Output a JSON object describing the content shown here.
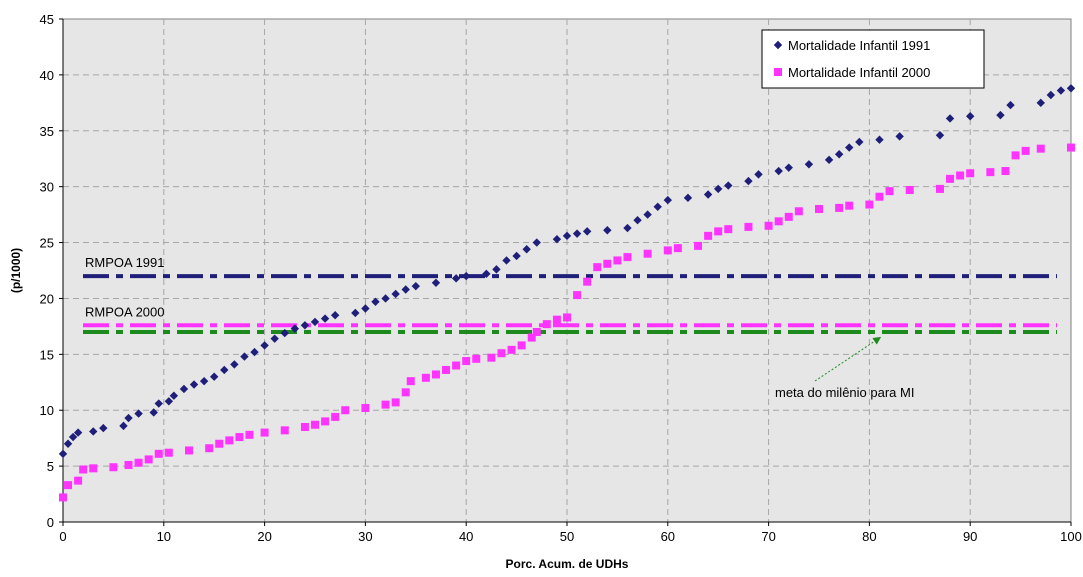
{
  "chart_data": {
    "type": "scatter",
    "xlabel": "Porc. Acum. de UDHs",
    "ylabel": "(p/1000)",
    "xlim": [
      0,
      100
    ],
    "ylim": [
      0,
      45
    ],
    "xticks": [
      0,
      10,
      20,
      30,
      40,
      50,
      60,
      70,
      80,
      90,
      100
    ],
    "yticks": [
      0,
      5,
      10,
      15,
      20,
      25,
      30,
      35,
      40,
      45
    ],
    "grid": true,
    "legend_position": "top-right",
    "plot_background": "#e6e6e6",
    "series": [
      {
        "name": "Mortalidade Infantil 1991",
        "marker": "diamond",
        "color": "#1f1f7a",
        "points": [
          [
            0,
            6.1
          ],
          [
            0.5,
            7.0
          ],
          [
            1,
            7.6
          ],
          [
            1.5,
            8.0
          ],
          [
            3,
            8.1
          ],
          [
            4,
            8.4
          ],
          [
            6,
            8.6
          ],
          [
            6.5,
            9.3
          ],
          [
            7.5,
            9.7
          ],
          [
            9,
            9.8
          ],
          [
            9.5,
            10.6
          ],
          [
            10.5,
            10.8
          ],
          [
            11,
            11.3
          ],
          [
            12,
            11.9
          ],
          [
            13,
            12.3
          ],
          [
            14,
            12.6
          ],
          [
            15,
            13.0
          ],
          [
            16,
            13.6
          ],
          [
            17,
            14.1
          ],
          [
            18,
            14.8
          ],
          [
            19,
            15.2
          ],
          [
            20,
            15.8
          ],
          [
            21,
            16.4
          ],
          [
            22,
            16.9
          ],
          [
            23,
            17.3
          ],
          [
            24,
            17.6
          ],
          [
            25,
            17.9
          ],
          [
            26,
            18.2
          ],
          [
            27,
            18.5
          ],
          [
            29,
            18.7
          ],
          [
            30,
            19.1
          ],
          [
            31,
            19.7
          ],
          [
            32,
            20.0
          ],
          [
            33,
            20.4
          ],
          [
            34,
            20.8
          ],
          [
            35,
            21.1
          ],
          [
            37,
            21.4
          ],
          [
            39,
            21.8
          ],
          [
            40,
            22.0
          ],
          [
            42,
            22.2
          ],
          [
            43,
            22.6
          ],
          [
            44,
            23.4
          ],
          [
            45,
            23.8
          ],
          [
            46,
            24.4
          ],
          [
            47,
            25.0
          ],
          [
            49,
            25.3
          ],
          [
            50,
            25.6
          ],
          [
            51,
            25.8
          ],
          [
            52,
            26.0
          ],
          [
            54,
            26.1
          ],
          [
            56,
            26.3
          ],
          [
            57,
            27.0
          ],
          [
            58,
            27.5
          ],
          [
            59,
            28.2
          ],
          [
            60,
            28.8
          ],
          [
            62,
            29.0
          ],
          [
            64,
            29.3
          ],
          [
            65,
            29.8
          ],
          [
            66,
            30.1
          ],
          [
            68,
            30.5
          ],
          [
            69,
            31.1
          ],
          [
            71,
            31.4
          ],
          [
            72,
            31.7
          ],
          [
            74,
            32.0
          ],
          [
            76,
            32.4
          ],
          [
            77,
            32.9
          ],
          [
            78,
            33.5
          ],
          [
            79,
            34.0
          ],
          [
            81,
            34.2
          ],
          [
            83,
            34.5
          ],
          [
            87,
            34.6
          ],
          [
            88,
            36.1
          ],
          [
            90,
            36.3
          ],
          [
            93,
            36.4
          ],
          [
            94,
            37.3
          ],
          [
            97,
            37.5
          ],
          [
            98,
            38.2
          ],
          [
            99,
            38.6
          ],
          [
            100,
            38.8
          ]
        ]
      },
      {
        "name": "Mortalidade Infantil 2000",
        "marker": "square",
        "color": "#ff33ff",
        "points": [
          [
            0,
            2.2
          ],
          [
            0.5,
            3.3
          ],
          [
            1.5,
            3.7
          ],
          [
            2,
            4.7
          ],
          [
            3,
            4.8
          ],
          [
            5,
            4.9
          ],
          [
            6.5,
            5.1
          ],
          [
            7.5,
            5.3
          ],
          [
            8.5,
            5.6
          ],
          [
            9.5,
            6.1
          ],
          [
            10.5,
            6.2
          ],
          [
            12.5,
            6.4
          ],
          [
            14.5,
            6.6
          ],
          [
            15.5,
            7.0
          ],
          [
            16.5,
            7.3
          ],
          [
            17.5,
            7.6
          ],
          [
            18.5,
            7.8
          ],
          [
            20,
            8.0
          ],
          [
            22,
            8.2
          ],
          [
            24,
            8.5
          ],
          [
            25,
            8.7
          ],
          [
            26,
            9.0
          ],
          [
            27,
            9.4
          ],
          [
            28,
            10.0
          ],
          [
            30,
            10.2
          ],
          [
            32,
            10.5
          ],
          [
            33,
            10.7
          ],
          [
            34,
            11.6
          ],
          [
            34.5,
            12.6
          ],
          [
            36,
            12.9
          ],
          [
            37,
            13.2
          ],
          [
            38,
            13.6
          ],
          [
            39,
            14.0
          ],
          [
            40,
            14.4
          ],
          [
            41,
            14.6
          ],
          [
            42.5,
            14.7
          ],
          [
            43.5,
            15.1
          ],
          [
            44.5,
            15.4
          ],
          [
            45.5,
            15.8
          ],
          [
            46.5,
            16.5
          ],
          [
            47,
            17.0
          ],
          [
            48,
            17.7
          ],
          [
            49,
            18.1
          ],
          [
            50,
            18.3
          ],
          [
            51,
            20.3
          ],
          [
            52,
            21.5
          ],
          [
            53,
            22.8
          ],
          [
            54,
            23.1
          ],
          [
            55,
            23.4
          ],
          [
            56,
            23.7
          ],
          [
            58,
            24.0
          ],
          [
            60,
            24.3
          ],
          [
            61,
            24.5
          ],
          [
            63,
            24.7
          ],
          [
            64,
            25.6
          ],
          [
            65,
            26.0
          ],
          [
            66,
            26.2
          ],
          [
            68,
            26.4
          ],
          [
            70,
            26.5
          ],
          [
            71,
            26.9
          ],
          [
            72,
            27.3
          ],
          [
            73,
            27.8
          ],
          [
            75,
            28.0
          ],
          [
            77,
            28.1
          ],
          [
            78,
            28.3
          ],
          [
            80,
            28.4
          ],
          [
            81,
            29.1
          ],
          [
            82,
            29.6
          ],
          [
            84,
            29.7
          ],
          [
            87,
            29.8
          ],
          [
            88,
            30.7
          ],
          [
            89,
            31.0
          ],
          [
            90,
            31.2
          ],
          [
            92,
            31.3
          ],
          [
            93.5,
            31.4
          ],
          [
            94.5,
            32.8
          ],
          [
            95.5,
            33.2
          ],
          [
            97,
            33.4
          ],
          [
            100,
            33.5
          ]
        ]
      }
    ],
    "reference_lines": [
      {
        "y": 22,
        "label": "RMPOA 1991",
        "color": "#1f1f7a"
      },
      {
        "y": 17.6,
        "label": "RMPOA 2000",
        "color": "#ff33ff"
      },
      {
        "y": 17,
        "label": "",
        "color": "#1e8a1e"
      }
    ],
    "annotations": [
      {
        "text": "meta do milênio para MI",
        "arrow_to": [
          81,
          17
        ]
      }
    ]
  }
}
